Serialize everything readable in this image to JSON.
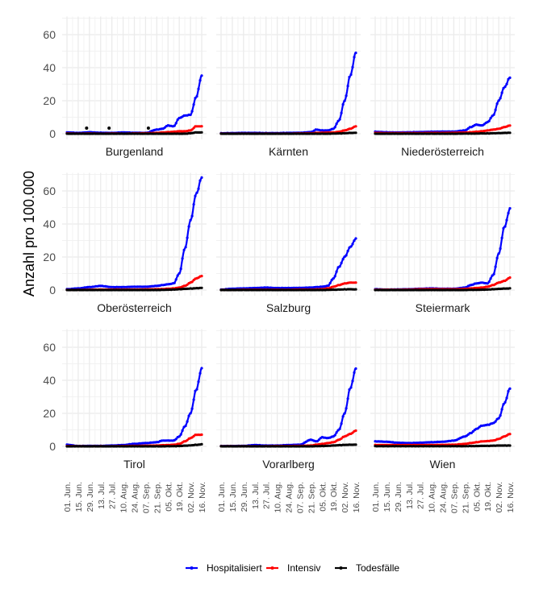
{
  "chart_data": {
    "type": "line",
    "ylabel": "Anzahl pro 100.000",
    "xlabel": "",
    "ylim": [
      0,
      70
    ],
    "yticks": [
      0,
      20,
      40,
      60
    ],
    "xticks": [
      "01. Jun.",
      "15. Jun.",
      "29. Jun.",
      "13. Jul.",
      "27. Jul.",
      "10. Aug.",
      "24. Aug.",
      "07. Sep.",
      "21. Sep.",
      "05. Okt.",
      "19. Okt.",
      "02. Nov.",
      "16. Nov."
    ],
    "grid": true,
    "legend": {
      "position": "bottom",
      "entries": [
        {
          "name": "Hospitalisiert",
          "color": "#0000ff"
        },
        {
          "name": "Intensiv",
          "color": "#ff0000"
        },
        {
          "name": "Todesfälle",
          "color": "#000000"
        }
      ]
    },
    "x_weeks": [
      0,
      2,
      4,
      6,
      8,
      10,
      12,
      14,
      16,
      17,
      18,
      19,
      20,
      21,
      22,
      23,
      24
    ],
    "panels": [
      {
        "name": "Burgenland",
        "series": [
          {
            "name": "Hospitalisiert",
            "values": [
              0.8,
              0.5,
              0.9,
              0.6,
              0.5,
              0.8,
              0.6,
              0.5,
              2.5,
              3.0,
              5.0,
              4.5,
              9.5,
              11.0,
              11.5,
              22.0,
              35.0
            ]
          },
          {
            "name": "Intensiv",
            "values": [
              0.2,
              0.1,
              0.2,
              0.1,
              0.2,
              0.1,
              0.2,
              0.3,
              0.5,
              0.8,
              1.0,
              1.2,
              1.5,
              1.5,
              2.0,
              4.5,
              4.5
            ]
          },
          {
            "name": "Todesfälle",
            "values": [
              0,
              0,
              0,
              0,
              0,
              0,
              0,
              0,
              0,
              0,
              0,
              0,
              0,
              0,
              0.3,
              0.8,
              0.8
            ]
          }
        ],
        "outliers": [
          {
            "week": 3.5,
            "value": 3.4
          },
          {
            "week": 7.5,
            "value": 3.4
          },
          {
            "week": 14.5,
            "value": 3.4
          }
        ]
      },
      {
        "name": "Kärnten",
        "series": [
          {
            "name": "Hospitalisiert",
            "values": [
              0.3,
              0.4,
              0.5,
              0.5,
              0.4,
              0.4,
              0.5,
              0.6,
              1.0,
              2.5,
              2.0,
              2.0,
              3.0,
              8.0,
              20.0,
              35.0,
              49.0
            ]
          },
          {
            "name": "Intensiv",
            "values": [
              0.1,
              0.1,
              0.1,
              0.1,
              0.1,
              0.1,
              0.1,
              0.2,
              0.3,
              0.5,
              0.6,
              0.7,
              0.8,
              1.2,
              2.0,
              3.0,
              4.5
            ]
          },
          {
            "name": "Todesfälle",
            "values": [
              0,
              0,
              0,
              0,
              0,
              0,
              0,
              0,
              0,
              0,
              0,
              0,
              0.1,
              0.2,
              0.3,
              0.5,
              0.6
            ]
          }
        ]
      },
      {
        "name": "Niederösterreich",
        "series": [
          {
            "name": "Hospitalisiert",
            "values": [
              1.2,
              0.9,
              0.8,
              0.9,
              1.0,
              1.2,
              1.3,
              1.3,
              2.0,
              4.0,
              5.5,
              5.0,
              7.0,
              11.0,
              20.0,
              28.0,
              34.0
            ]
          },
          {
            "name": "Intensiv",
            "values": [
              0.5,
              0.4,
              0.4,
              0.4,
              0.4,
              0.5,
              0.5,
              0.6,
              0.7,
              0.9,
              1.2,
              1.5,
              2.0,
              2.5,
              3.0,
              4.0,
              5.0
            ]
          },
          {
            "name": "Todesfälle",
            "values": [
              0,
              0,
              0,
              0,
              0,
              0,
              0,
              0,
              0.1,
              0.1,
              0.1,
              0.2,
              0.2,
              0.3,
              0.4,
              0.5,
              0.6
            ]
          }
        ]
      },
      {
        "name": "Oberösterreich",
        "series": [
          {
            "name": "Hospitalisiert",
            "values": [
              0.5,
              1.0,
              1.8,
              2.5,
              1.8,
              1.8,
              2.0,
              2.0,
              2.5,
              3.0,
              3.5,
              4.0,
              10.0,
              25.0,
              42.0,
              58.0,
              68.0
            ]
          },
          {
            "name": "Intensiv",
            "values": [
              0.1,
              0.1,
              0.2,
              0.3,
              0.3,
              0.3,
              0.3,
              0.4,
              0.5,
              0.6,
              0.8,
              1.0,
              1.5,
              2.5,
              4.5,
              7.0,
              8.5
            ]
          },
          {
            "name": "Todesfälle",
            "values": [
              0,
              0,
              0,
              0,
              0,
              0,
              0,
              0,
              0,
              0.1,
              0.2,
              0.3,
              0.5,
              0.7,
              0.9,
              1.1,
              1.3
            ]
          }
        ]
      },
      {
        "name": "Salzburg",
        "series": [
          {
            "name": "Hospitalisiert",
            "values": [
              0.3,
              0.8,
              1.0,
              1.2,
              1.5,
              1.2,
              1.2,
              1.3,
              1.5,
              1.8,
              2.0,
              2.5,
              7.0,
              14.0,
              20.0,
              26.0,
              31.0
            ]
          },
          {
            "name": "Intensiv",
            "values": [
              0.1,
              0.1,
              0.2,
              0.2,
              0.2,
              0.2,
              0.2,
              0.3,
              0.3,
              0.4,
              0.5,
              1.0,
              2.0,
              3.0,
              4.0,
              4.5,
              4.5
            ]
          },
          {
            "name": "Todesfälle",
            "values": [
              0,
              0,
              0,
              0,
              0,
              0,
              0,
              0,
              0,
              0,
              0,
              0.1,
              0.2,
              0.3,
              0.4,
              0.5,
              0.4
            ]
          }
        ]
      },
      {
        "name": "Steiermark",
        "series": [
          {
            "name": "Hospitalisiert",
            "values": [
              0.5,
              0.3,
              0.4,
              0.5,
              0.8,
              1.0,
              0.8,
              0.8,
              1.5,
              3.0,
              4.0,
              4.5,
              4.0,
              9.0,
              22.0,
              38.0,
              49.0
            ]
          },
          {
            "name": "Intensiv",
            "values": [
              0.2,
              0.2,
              0.2,
              0.3,
              0.5,
              0.6,
              0.5,
              0.5,
              0.7,
              1.0,
              1.2,
              1.5,
              2.0,
              3.0,
              4.5,
              5.5,
              7.5
            ]
          },
          {
            "name": "Todesfälle",
            "values": [
              0,
              0,
              0,
              0,
              0,
              0,
              0,
              0,
              0,
              0.1,
              0.1,
              0.2,
              0.3,
              0.5,
              0.7,
              0.9,
              1.0
            ]
          }
        ]
      },
      {
        "name": "Tirol",
        "series": [
          {
            "name": "Hospitalisiert",
            "values": [
              1.0,
              0.2,
              0.3,
              0.3,
              0.5,
              0.8,
              1.5,
              2.0,
              2.5,
              3.5,
              3.5,
              3.5,
              6.0,
              12.0,
              20.0,
              34.0,
              47.0
            ]
          },
          {
            "name": "Intensiv",
            "values": [
              0.2,
              0.1,
              0.1,
              0.1,
              0.1,
              0.2,
              0.3,
              0.4,
              0.5,
              0.7,
              0.8,
              1.0,
              1.5,
              3.0,
              5.0,
              7.0,
              7.0
            ]
          },
          {
            "name": "Todesfälle",
            "values": [
              0,
              0,
              0,
              0,
              0,
              0,
              0,
              0,
              0,
              0,
              0.1,
              0.1,
              0.2,
              0.4,
              0.6,
              0.9,
              1.2
            ]
          }
        ]
      },
      {
        "name": "Vorarlberg",
        "series": [
          {
            "name": "Hospitalisiert",
            "values": [
              0.2,
              0.2,
              0.3,
              0.8,
              0.5,
              0.5,
              0.8,
              1.0,
              4.0,
              3.0,
              5.5,
              5.0,
              6.0,
              10.0,
              20.0,
              35.0,
              47.0
            ]
          },
          {
            "name": "Intensiv",
            "values": [
              0.1,
              0.1,
              0.1,
              0.1,
              0.1,
              0.2,
              0.2,
              0.3,
              0.5,
              1.0,
              1.5,
              2.0,
              2.5,
              4.0,
              6.0,
              7.5,
              9.5
            ]
          },
          {
            "name": "Todesfälle",
            "values": [
              0,
              0,
              0,
              0,
              0,
              0,
              0,
              0,
              0,
              0.1,
              0.2,
              0.3,
              0.5,
              0.7,
              0.9,
              1.0,
              1.0
            ]
          }
        ]
      },
      {
        "name": "Wien",
        "series": [
          {
            "name": "Hospitalisiert",
            "values": [
              3.0,
              2.8,
              2.2,
              2.0,
              2.2,
              2.5,
              2.8,
              3.5,
              6.0,
              8.0,
              10.5,
              12.5,
              13.0,
              14.0,
              17.0,
              26.0,
              35.0
            ]
          },
          {
            "name": "Intensiv",
            "values": [
              0.8,
              0.8,
              0.8,
              0.8,
              0.8,
              0.8,
              0.9,
              1.0,
              1.5,
              2.0,
              2.5,
              3.0,
              3.2,
              3.5,
              4.5,
              6.0,
              7.5
            ]
          },
          {
            "name": "Todesfälle",
            "values": [
              0.1,
              0.1,
              0.1,
              0.1,
              0.1,
              0.1,
              0.1,
              0.1,
              0.1,
              0.2,
              0.2,
              0.3,
              0.3,
              0.4,
              0.5,
              0.5,
              0.5
            ]
          }
        ]
      }
    ]
  }
}
